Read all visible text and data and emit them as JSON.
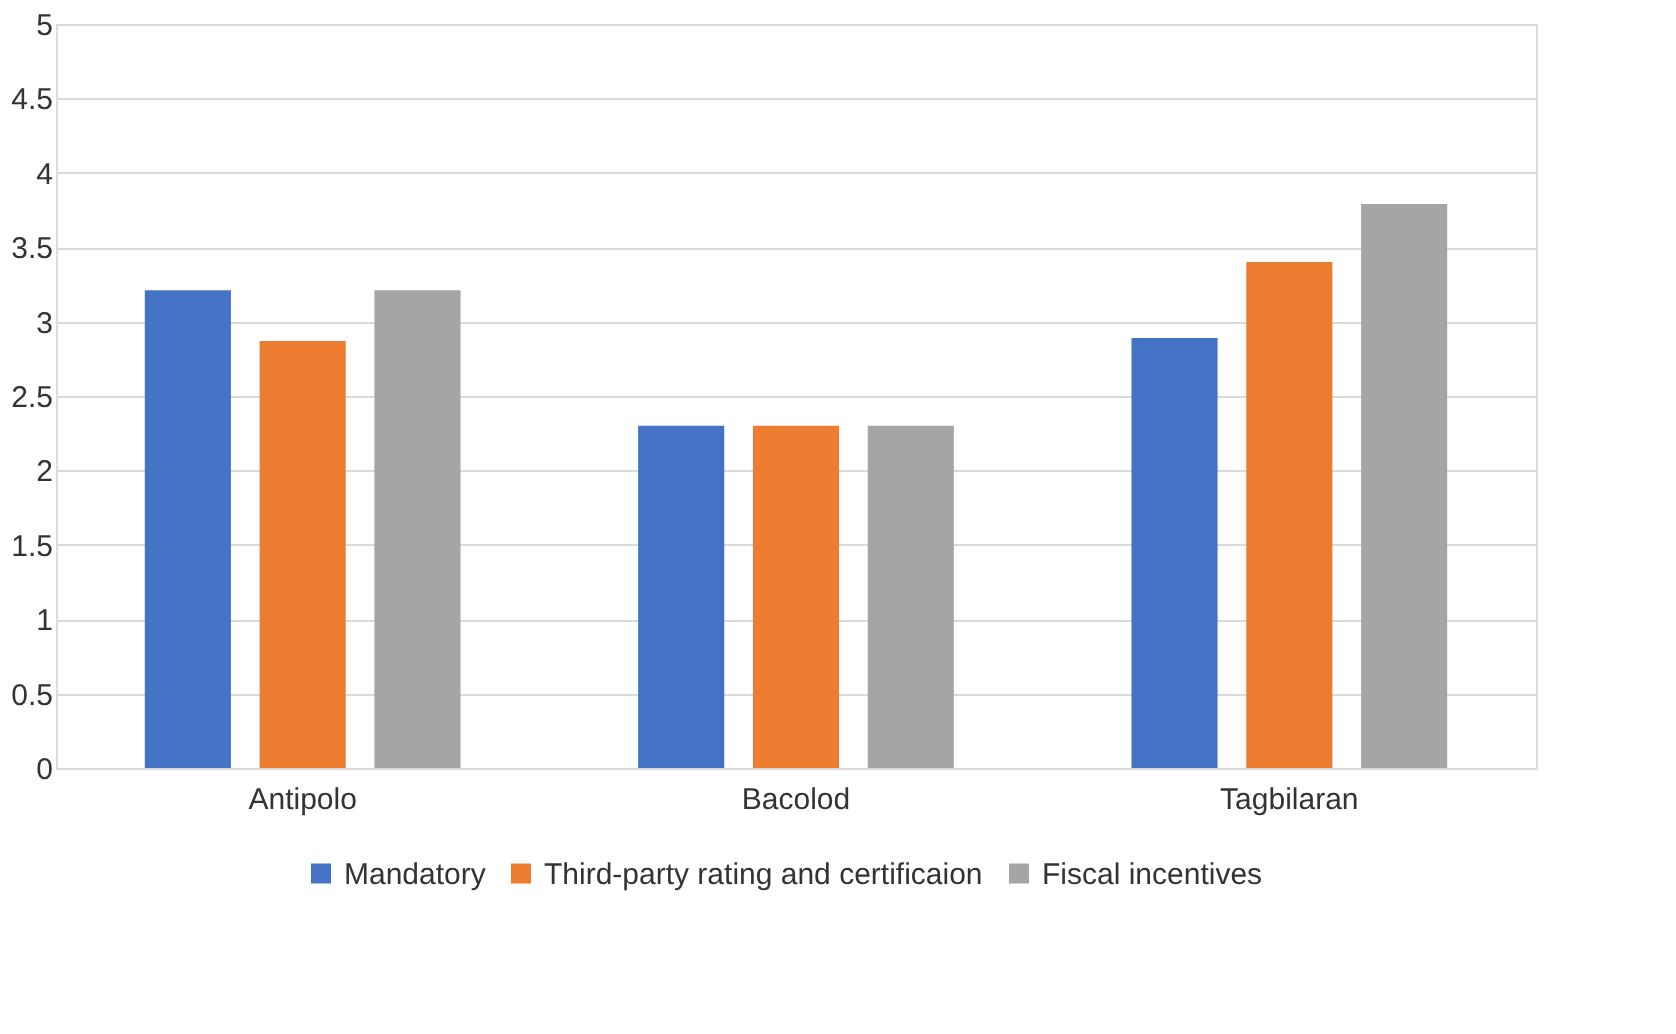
{
  "chart_data": {
    "type": "bar",
    "categories": [
      "Antipolo",
      "Bacolod",
      "Tagbilaran"
    ],
    "series": [
      {
        "name": "Mandatory",
        "color": "#4472c4",
        "values": [
          3.21,
          2.3,
          2.89
        ]
      },
      {
        "name": "Third-party rating and certificaion",
        "color": "#ed7d31",
        "values": [
          2.87,
          2.3,
          3.4
        ]
      },
      {
        "name": "Fiscal incentives",
        "color": "#a5a5a5",
        "values": [
          3.21,
          2.3,
          3.79
        ]
      }
    ],
    "ylim": [
      0,
      5
    ],
    "yticks": [
      0,
      0.5,
      1,
      1.5,
      2,
      2.5,
      3,
      3.5,
      4,
      4.5,
      5
    ],
    "grid": "y",
    "legend": "bottom"
  }
}
